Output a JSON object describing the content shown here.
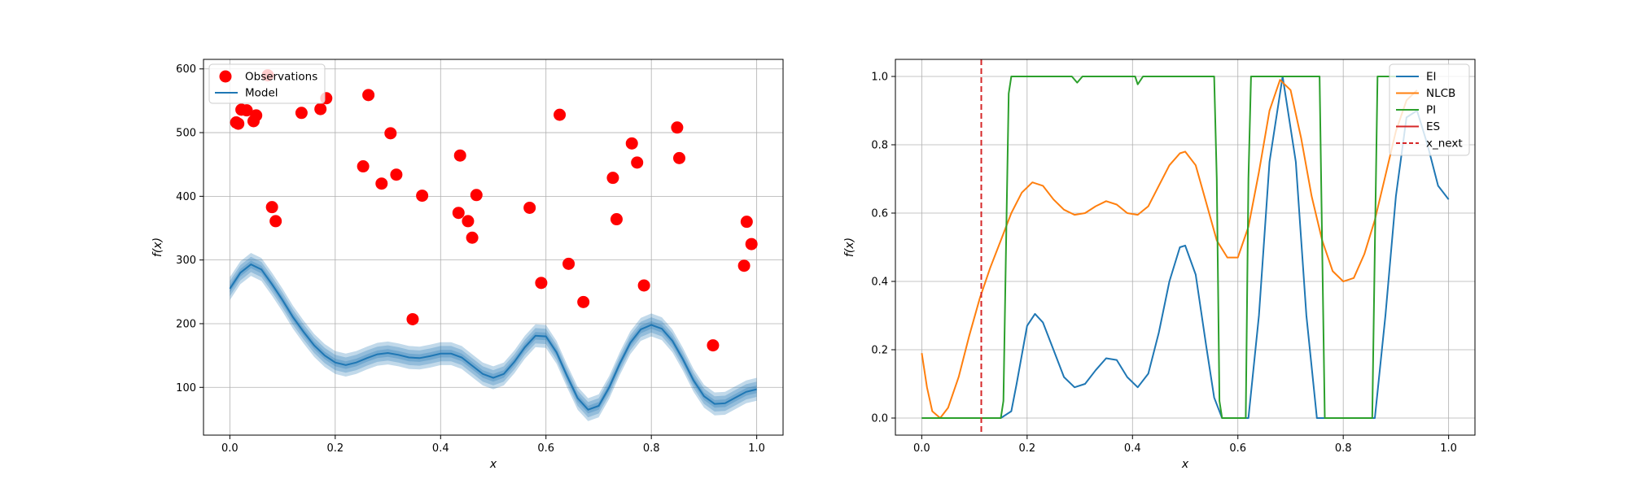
{
  "colors": {
    "observations": "#ff0000",
    "model": "#1f77b4",
    "EI": "#1f77b4",
    "NLCB": "#ff7f0e",
    "PI": "#2ca02c",
    "ES": "#d62728",
    "x_next": "#d62728",
    "grid": "#b0b0b0"
  },
  "chart_data": [
    {
      "type": "scatter",
      "xlabel": "x",
      "ylabel": "f(x)",
      "xlim": [
        -0.05,
        1.05
      ],
      "ylim": [
        25,
        615
      ],
      "xticks": [
        0.0,
        0.2,
        0.4,
        0.6,
        0.8,
        1.0
      ],
      "xtick_labels": [
        "0.0",
        "0.2",
        "0.4",
        "0.6",
        "0.8",
        "1.0"
      ],
      "yticks": [
        100,
        200,
        300,
        400,
        500,
        600
      ],
      "ytick_labels": [
        "100",
        "200",
        "300",
        "400",
        "500",
        "600"
      ],
      "grid": true,
      "legend": {
        "placement": "top-left",
        "entries": [
          "Observations",
          "Model"
        ]
      },
      "series": [
        {
          "name": "Observations",
          "kind": "scatter",
          "points": [
            [
              0.012,
              516
            ],
            [
              0.016,
              514
            ],
            [
              0.022,
              536
            ],
            [
              0.032,
              535
            ],
            [
              0.045,
              518
            ],
            [
              0.05,
              527
            ],
            [
              0.072,
              590
            ],
            [
              0.08,
              383
            ],
            [
              0.087,
              361
            ],
            [
              0.136,
              531
            ],
            [
              0.172,
              537
            ],
            [
              0.183,
              554
            ],
            [
              0.253,
              447
            ],
            [
              0.263,
              559
            ],
            [
              0.288,
              420
            ],
            [
              0.305,
              499
            ],
            [
              0.316,
              434
            ],
            [
              0.347,
              207
            ],
            [
              0.365,
              401
            ],
            [
              0.434,
              374
            ],
            [
              0.437,
              464
            ],
            [
              0.452,
              361
            ],
            [
              0.46,
              335
            ],
            [
              0.468,
              402
            ],
            [
              0.569,
              382
            ],
            [
              0.591,
              264
            ],
            [
              0.626,
              528
            ],
            [
              0.643,
              294
            ],
            [
              0.671,
              234
            ],
            [
              0.727,
              429
            ],
            [
              0.734,
              364
            ],
            [
              0.763,
              483
            ],
            [
              0.773,
              453
            ],
            [
              0.786,
              260
            ],
            [
              0.849,
              508
            ],
            [
              0.853,
              460
            ],
            [
              0.917,
              166
            ],
            [
              0.976,
              291
            ],
            [
              0.981,
              360
            ],
            [
              0.99,
              325
            ]
          ]
        },
        {
          "name": "Model",
          "kind": "line",
          "uncertainty_band_half_widths": [
            6,
            12,
            18
          ],
          "points": [
            [
              0.0,
              255
            ],
            [
              0.02,
              280
            ],
            [
              0.04,
              293
            ],
            [
              0.06,
              285
            ],
            [
              0.08,
              262
            ],
            [
              0.1,
              237
            ],
            [
              0.12,
              210
            ],
            [
              0.14,
              187
            ],
            [
              0.16,
              166
            ],
            [
              0.18,
              150
            ],
            [
              0.2,
              139
            ],
            [
              0.22,
              135
            ],
            [
              0.24,
              139
            ],
            [
              0.26,
              146
            ],
            [
              0.28,
              152
            ],
            [
              0.3,
              154
            ],
            [
              0.32,
              151
            ],
            [
              0.34,
              147
            ],
            [
              0.36,
              146
            ],
            [
              0.38,
              149
            ],
            [
              0.4,
              153
            ],
            [
              0.42,
              153
            ],
            [
              0.44,
              147
            ],
            [
              0.46,
              134
            ],
            [
              0.48,
              121
            ],
            [
              0.5,
              115
            ],
            [
              0.52,
              121
            ],
            [
              0.54,
              140
            ],
            [
              0.56,
              163
            ],
            [
              0.58,
              181
            ],
            [
              0.6,
              180
            ],
            [
              0.62,
              155
            ],
            [
              0.64,
              118
            ],
            [
              0.66,
              83
            ],
            [
              0.68,
              65
            ],
            [
              0.7,
              71
            ],
            [
              0.72,
              100
            ],
            [
              0.74,
              137
            ],
            [
              0.76,
              170
            ],
            [
              0.78,
              191
            ],
            [
              0.8,
              198
            ],
            [
              0.82,
              192
            ],
            [
              0.84,
              173
            ],
            [
              0.86,
              144
            ],
            [
              0.88,
              111
            ],
            [
              0.9,
              86
            ],
            [
              0.92,
              74
            ],
            [
              0.94,
              75
            ],
            [
              0.96,
              84
            ],
            [
              0.98,
              93
            ],
            [
              1.0,
              97
            ]
          ]
        }
      ]
    },
    {
      "type": "line",
      "xlabel": "x",
      "ylabel": "f(x)",
      "xlim": [
        -0.05,
        1.05
      ],
      "ylim": [
        -0.05,
        1.05
      ],
      "xticks": [
        0.0,
        0.2,
        0.4,
        0.6,
        0.8,
        1.0
      ],
      "xtick_labels": [
        "0.0",
        "0.2",
        "0.4",
        "0.6",
        "0.8",
        "1.0"
      ],
      "yticks": [
        0.0,
        0.2,
        0.4,
        0.6,
        0.8,
        1.0
      ],
      "ytick_labels": [
        "0.0",
        "0.2",
        "0.4",
        "0.6",
        "0.8",
        "1.0"
      ],
      "grid": true,
      "legend": {
        "placement": "top-right",
        "entries": [
          "EI",
          "NLCB",
          "PI",
          "ES",
          "x_next"
        ]
      },
      "vlines": [
        {
          "name": "x_next",
          "x": 0.113,
          "style": "dashed"
        }
      ],
      "series": [
        {
          "name": "EI",
          "points": [
            [
              0.0,
              0.0
            ],
            [
              0.15,
              0.0
            ],
            [
              0.17,
              0.02
            ],
            [
              0.18,
              0.1
            ],
            [
              0.2,
              0.27
            ],
            [
              0.215,
              0.305
            ],
            [
              0.23,
              0.28
            ],
            [
              0.25,
              0.2
            ],
            [
              0.27,
              0.12
            ],
            [
              0.29,
              0.09
            ],
            [
              0.31,
              0.1
            ],
            [
              0.33,
              0.14
            ],
            [
              0.35,
              0.175
            ],
            [
              0.37,
              0.17
            ],
            [
              0.39,
              0.12
            ],
            [
              0.41,
              0.09
            ],
            [
              0.43,
              0.13
            ],
            [
              0.45,
              0.25
            ],
            [
              0.47,
              0.4
            ],
            [
              0.49,
              0.5
            ],
            [
              0.5,
              0.505
            ],
            [
              0.52,
              0.42
            ],
            [
              0.54,
              0.21
            ],
            [
              0.555,
              0.06
            ],
            [
              0.57,
              0.0
            ],
            [
              0.62,
              0.0
            ],
            [
              0.64,
              0.3
            ],
            [
              0.66,
              0.75
            ],
            [
              0.685,
              1.0
            ],
            [
              0.71,
              0.75
            ],
            [
              0.73,
              0.3
            ],
            [
              0.75,
              0.0
            ],
            [
              0.86,
              0.0
            ],
            [
              0.88,
              0.3
            ],
            [
              0.9,
              0.65
            ],
            [
              0.92,
              0.88
            ],
            [
              0.94,
              0.9
            ],
            [
              0.96,
              0.8
            ],
            [
              0.98,
              0.68
            ],
            [
              1.0,
              0.64
            ]
          ]
        },
        {
          "name": "NLCB",
          "points": [
            [
              0.0,
              0.19
            ],
            [
              0.01,
              0.09
            ],
            [
              0.02,
              0.02
            ],
            [
              0.035,
              0.0
            ],
            [
              0.05,
              0.03
            ],
            [
              0.07,
              0.12
            ],
            [
              0.09,
              0.24
            ],
            [
              0.11,
              0.35
            ],
            [
              0.13,
              0.44
            ],
            [
              0.15,
              0.52
            ],
            [
              0.17,
              0.6
            ],
            [
              0.19,
              0.66
            ],
            [
              0.21,
              0.69
            ],
            [
              0.23,
              0.68
            ],
            [
              0.25,
              0.64
            ],
            [
              0.27,
              0.61
            ],
            [
              0.29,
              0.595
            ],
            [
              0.31,
              0.6
            ],
            [
              0.33,
              0.62
            ],
            [
              0.35,
              0.635
            ],
            [
              0.37,
              0.625
            ],
            [
              0.39,
              0.6
            ],
            [
              0.41,
              0.595
            ],
            [
              0.43,
              0.62
            ],
            [
              0.45,
              0.68
            ],
            [
              0.47,
              0.74
            ],
            [
              0.49,
              0.775
            ],
            [
              0.5,
              0.78
            ],
            [
              0.52,
              0.74
            ],
            [
              0.54,
              0.63
            ],
            [
              0.56,
              0.52
            ],
            [
              0.58,
              0.47
            ],
            [
              0.6,
              0.47
            ],
            [
              0.62,
              0.56
            ],
            [
              0.64,
              0.72
            ],
            [
              0.66,
              0.9
            ],
            [
              0.68,
              0.99
            ],
            [
              0.7,
              0.96
            ],
            [
              0.72,
              0.82
            ],
            [
              0.74,
              0.65
            ],
            [
              0.76,
              0.52
            ],
            [
              0.78,
              0.43
            ],
            [
              0.8,
              0.4
            ],
            [
              0.82,
              0.41
            ],
            [
              0.84,
              0.48
            ],
            [
              0.86,
              0.58
            ],
            [
              0.88,
              0.71
            ],
            [
              0.9,
              0.84
            ],
            [
              0.92,
              0.93
            ],
            [
              0.94,
              0.96
            ]
          ]
        },
        {
          "name": "PI",
          "points": [
            [
              0.0,
              0.0
            ],
            [
              0.15,
              0.0
            ],
            [
              0.155,
              0.05
            ],
            [
              0.16,
              0.5
            ],
            [
              0.165,
              0.95
            ],
            [
              0.17,
              1.0
            ],
            [
              0.285,
              1.0
            ],
            [
              0.295,
              0.982
            ],
            [
              0.305,
              1.0
            ],
            [
              0.405,
              1.0
            ],
            [
              0.41,
              0.977
            ],
            [
              0.42,
              1.0
            ],
            [
              0.555,
              1.0
            ],
            [
              0.56,
              0.7
            ],
            [
              0.565,
              0.05
            ],
            [
              0.57,
              0.0
            ],
            [
              0.615,
              0.0
            ],
            [
              0.62,
              0.7
            ],
            [
              0.625,
              1.0
            ],
            [
              0.755,
              1.0
            ],
            [
              0.76,
              0.5
            ],
            [
              0.765,
              0.0
            ],
            [
              0.855,
              0.0
            ],
            [
              0.86,
              0.5
            ],
            [
              0.865,
              1.0
            ],
            [
              0.94,
              1.0
            ]
          ]
        },
        {
          "name": "ES",
          "points": []
        }
      ]
    }
  ]
}
